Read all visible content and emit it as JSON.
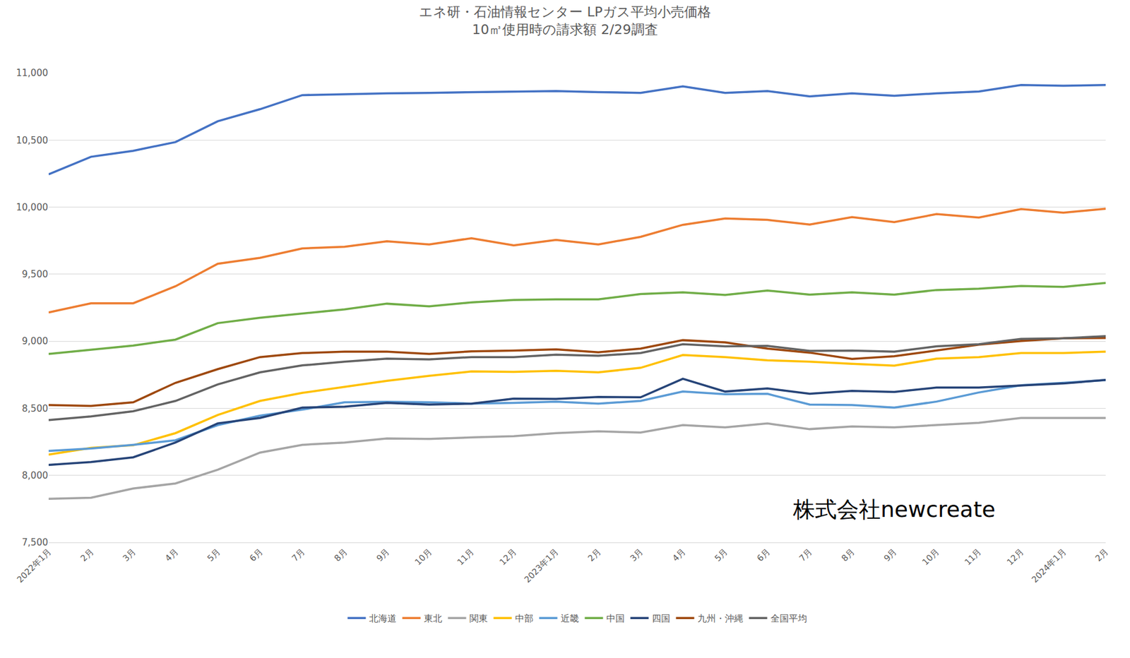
{
  "chart_data": {
    "type": "line",
    "title": "エネ研・石油情報センター LPガス平均小売価格",
    "subtitle": "10㎥使用時の請求額 2/29調査",
    "annotation": "株式会社newcreate",
    "categories": [
      "2022年1月",
      "2月",
      "3月",
      "4月",
      "5月",
      "6月",
      "7月",
      "8月",
      "9月",
      "10月",
      "11月",
      "12月",
      "2023年1月",
      "2月",
      "3月",
      "4月",
      "5月",
      "6月",
      "7月",
      "8月",
      "9月",
      "10月",
      "11月",
      "12月",
      "2024年1月",
      "2月"
    ],
    "series": [
      {
        "name": "北海道",
        "color": "#4472C4",
        "values": [
          10245,
          10375,
          10420,
          10485,
          10640,
          10730,
          10835,
          10843,
          10848,
          10852,
          10856,
          10860,
          10865,
          10857,
          10852,
          10900,
          10852,
          10865,
          10825,
          10848,
          10830,
          10848,
          10862,
          10910,
          10905,
          10910
        ]
      },
      {
        "name": "東北",
        "color": "#ED7D31",
        "values": [
          9215,
          9283,
          9283,
          9410,
          9578,
          9622,
          9692,
          9705,
          9745,
          9722,
          9768,
          9715,
          9755,
          9722,
          9778,
          9868,
          9915,
          9905,
          9870,
          9925,
          9888,
          9948,
          9922,
          9985,
          9958,
          9988
        ]
      },
      {
        "name": "関東",
        "color": "#A5A5A5",
        "values": [
          7825,
          7833,
          7902,
          7940,
          8042,
          8170,
          8228,
          8245,
          8275,
          8272,
          8283,
          8292,
          8315,
          8328,
          8320,
          8375,
          8358,
          8387,
          8345,
          8365,
          8358,
          8375,
          8392,
          8428,
          8428,
          8428
        ]
      },
      {
        "name": "中部",
        "color": "#FFC000",
        "values": [
          8155,
          8205,
          8225,
          8315,
          8450,
          8555,
          8615,
          8660,
          8705,
          8742,
          8775,
          8772,
          8780,
          8768,
          8802,
          8897,
          8882,
          8858,
          8848,
          8832,
          8818,
          8870,
          8882,
          8912,
          8912,
          8922
        ]
      },
      {
        "name": "近畿",
        "color": "#5B9BD5",
        "values": [
          8182,
          8200,
          8228,
          8262,
          8375,
          8445,
          8490,
          8545,
          8548,
          8545,
          8535,
          8540,
          8550,
          8535,
          8555,
          8625,
          8605,
          8608,
          8528,
          8525,
          8505,
          8550,
          8618,
          8672,
          8690,
          8710
        ]
      },
      {
        "name": "中国",
        "color": "#70AD47",
        "values": [
          8905,
          8938,
          8968,
          9012,
          9135,
          9175,
          9208,
          9238,
          9280,
          9260,
          9290,
          9308,
          9312,
          9312,
          9352,
          9365,
          9345,
          9378,
          9348,
          9365,
          9348,
          9382,
          9392,
          9412,
          9405,
          9435
        ]
      },
      {
        "name": "四国",
        "color": "#264478",
        "values": [
          8078,
          8100,
          8135,
          8245,
          8388,
          8428,
          8505,
          8512,
          8540,
          8528,
          8535,
          8572,
          8570,
          8585,
          8582,
          8720,
          8625,
          8648,
          8608,
          8630,
          8622,
          8655,
          8655,
          8670,
          8685,
          8712
        ]
      },
      {
        "name": "九州・沖縄",
        "color": "#9E480E",
        "values": [
          8525,
          8518,
          8545,
          8690,
          8792,
          8882,
          8912,
          8922,
          8922,
          8905,
          8925,
          8930,
          8940,
          8918,
          8945,
          9008,
          8992,
          8945,
          8915,
          8868,
          8888,
          8932,
          8975,
          9002,
          9022,
          9025
        ]
      },
      {
        "name": "全国平均",
        "color": "#636363",
        "values": [
          8412,
          8440,
          8478,
          8555,
          8678,
          8768,
          8820,
          8848,
          8870,
          8865,
          8882,
          8882,
          8900,
          8892,
          8912,
          8978,
          8962,
          8965,
          8928,
          8930,
          8922,
          8962,
          8978,
          9018,
          9022,
          9038
        ]
      }
    ],
    "ylim": [
      7500,
      11000
    ],
    "yticks": [
      {
        "value": 7500,
        "label": "7,500"
      },
      {
        "value": 8000,
        "label": "8,000"
      },
      {
        "value": 8500,
        "label": "8,500"
      },
      {
        "value": 9000,
        "label": "9,000"
      },
      {
        "value": 9500,
        "label": "9,500"
      },
      {
        "value": 10000,
        "label": "10,000"
      },
      {
        "value": 10500,
        "label": "10,500"
      },
      {
        "value": 11000,
        "label": "11,000"
      }
    ],
    "grid": true,
    "legend": "bottom"
  }
}
